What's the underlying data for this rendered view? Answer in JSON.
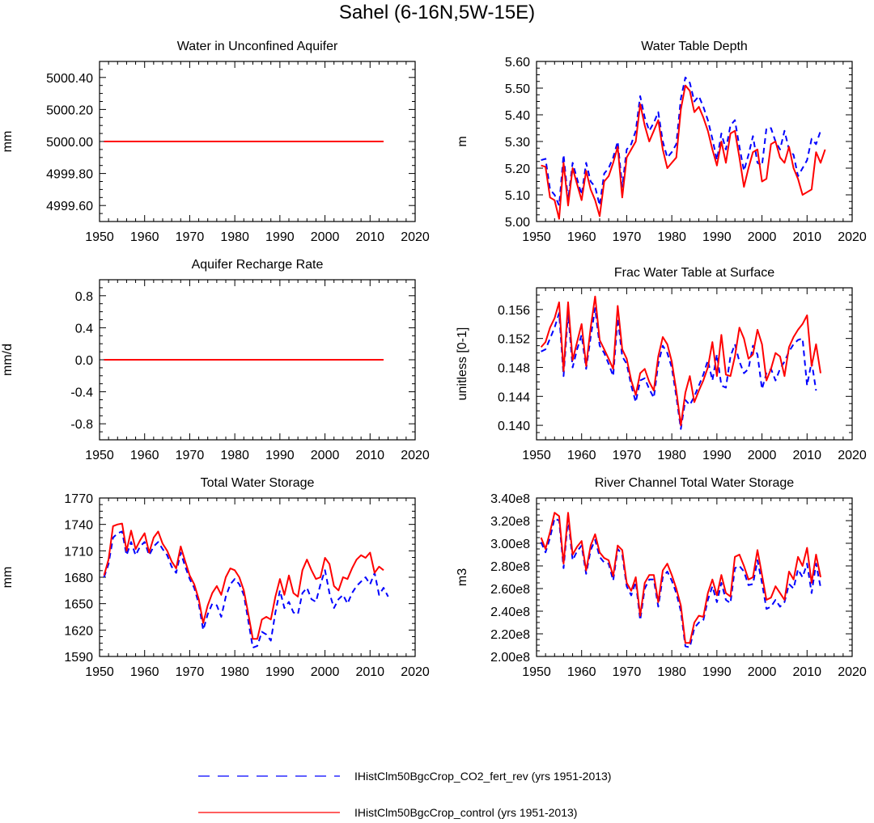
{
  "figure": {
    "title": "Sahel (6-16N,5W-15E)"
  },
  "legend": [
    {
      "label": "IHistClm50BgcCrop_CO2_fert_rev (yrs 1951-2013)",
      "color": "#0000ff",
      "style": "dashed"
    },
    {
      "label": "IHistClm50BgcCrop_control (yrs 1951-2013)",
      "color": "#ff0000",
      "style": "solid"
    }
  ],
  "colors": {
    "series_1": "#0000ff",
    "series_2": "#ff0000"
  },
  "chart_data": [
    {
      "type": "line",
      "title": "Water in Unconfined Aquifer",
      "ylabel": "mm",
      "xlim": [
        1950,
        2020
      ],
      "ylim": [
        4999.5,
        5000.5
      ],
      "xticks": [
        1950,
        1960,
        1970,
        1980,
        1990,
        2000,
        2010,
        2020
      ],
      "yticks": [
        4999.6,
        4999.8,
        5000.0,
        5000.2,
        5000.4
      ],
      "ytick_labels": [
        "4999.60",
        "4999.80",
        "5000.00",
        "5000.20",
        "5000.40"
      ],
      "x": [
        1951,
        2013
      ],
      "series": [
        {
          "values": [
            5000.0,
            5000.0
          ]
        },
        {
          "values": [
            5000.0,
            5000.0
          ]
        }
      ]
    },
    {
      "type": "line",
      "title": "Water Table Depth",
      "ylabel": "m",
      "xlim": [
        1950,
        2020
      ],
      "ylim": [
        5.0,
        5.6
      ],
      "xticks": [
        1950,
        1960,
        1970,
        1980,
        1990,
        2000,
        2010,
        2020
      ],
      "yticks": [
        5.0,
        5.1,
        5.2,
        5.3,
        5.4,
        5.5,
        5.6
      ],
      "ytick_labels": [
        "5.00",
        "5.10",
        "5.20",
        "5.30",
        "5.40",
        "5.50",
        "5.60"
      ],
      "x_start": 1951,
      "x_step": 1,
      "series": [
        {
          "values": [
            5.23,
            5.235,
            5.12,
            5.1,
            5.06,
            5.25,
            5.08,
            5.22,
            5.16,
            5.1,
            5.22,
            5.15,
            5.13,
            5.06,
            5.18,
            5.2,
            5.24,
            5.3,
            5.13,
            5.27,
            5.29,
            5.34,
            5.47,
            5.39,
            5.34,
            5.37,
            5.41,
            5.3,
            5.24,
            5.26,
            5.29,
            5.46,
            5.54,
            5.52,
            5.45,
            5.47,
            5.43,
            5.38,
            5.31,
            5.23,
            5.33,
            5.27,
            5.36,
            5.38,
            5.28,
            5.19,
            5.25,
            5.32,
            5.22,
            5.21,
            5.35,
            5.35,
            5.3,
            5.27,
            5.34,
            5.27,
            5.25,
            5.17,
            5.2,
            5.23,
            5.31,
            5.29,
            5.34
          ]
        },
        {
          "values": [
            5.21,
            5.205,
            5.09,
            5.08,
            5.01,
            5.22,
            5.06,
            5.2,
            5.14,
            5.08,
            5.19,
            5.12,
            5.08,
            5.02,
            5.15,
            5.17,
            5.22,
            5.28,
            5.09,
            5.24,
            5.27,
            5.3,
            5.44,
            5.36,
            5.3,
            5.34,
            5.38,
            5.27,
            5.2,
            5.22,
            5.24,
            5.42,
            5.51,
            5.49,
            5.41,
            5.43,
            5.39,
            5.34,
            5.27,
            5.21,
            5.3,
            5.22,
            5.33,
            5.34,
            5.24,
            5.13,
            5.2,
            5.26,
            5.27,
            5.15,
            5.16,
            5.29,
            5.3,
            5.24,
            5.22,
            5.28,
            5.2,
            5.16,
            5.1,
            5.11,
            5.12,
            5.26,
            5.22,
            5.27
          ]
        }
      ]
    },
    {
      "type": "line",
      "title": "Aquifer Recharge Rate",
      "ylabel": "mm/d",
      "xlim": [
        1950,
        2020
      ],
      "ylim": [
        -1.0,
        1.0
      ],
      "xticks": [
        1950,
        1960,
        1970,
        1980,
        1990,
        2000,
        2010,
        2020
      ],
      "yticks": [
        -0.8,
        -0.4,
        0.0,
        0.4,
        0.8
      ],
      "ytick_labels": [
        "-0.8",
        "-0.4",
        "0.0",
        "0.4",
        "0.8"
      ],
      "x": [
        1951,
        2013
      ],
      "series": [
        {
          "values": [
            0.0,
            0.0
          ]
        },
        {
          "values": [
            0.0,
            0.0
          ]
        }
      ]
    },
    {
      "type": "line",
      "title": "Frac Water Table at Surface",
      "ylabel": "unitless [0-1]",
      "xlim": [
        1950,
        2020
      ],
      "ylim": [
        0.138,
        0.159
      ],
      "xticks": [
        1950,
        1960,
        1970,
        1980,
        1990,
        2000,
        2010,
        2020
      ],
      "yticks": [
        0.14,
        0.144,
        0.148,
        0.152,
        0.156
      ],
      "ytick_labels": [
        "0.140",
        "0.144",
        "0.148",
        "0.152",
        "0.156"
      ],
      "x_start": 1951,
      "x_step": 1,
      "series": [
        {
          "values": [
            0.1502,
            0.1505,
            0.152,
            0.1535,
            0.1555,
            0.1468,
            0.1555,
            0.148,
            0.1505,
            0.1525,
            0.1478,
            0.1522,
            0.1562,
            0.151,
            0.15,
            0.1485,
            0.1468,
            0.1548,
            0.1495,
            0.1485,
            0.1455,
            0.1432,
            0.1462,
            0.1465,
            0.145,
            0.1438,
            0.1485,
            0.151,
            0.15,
            0.148,
            0.144,
            0.1395,
            0.1435,
            0.1428,
            0.144,
            0.1455,
            0.147,
            0.149,
            0.1462,
            0.1498,
            0.1455,
            0.1452,
            0.1495,
            0.1512,
            0.1488,
            0.1472,
            0.1478,
            0.151,
            0.1498,
            0.145,
            0.1472,
            0.1478,
            0.1462,
            0.1478,
            0.1488,
            0.1502,
            0.1512,
            0.1518,
            0.152,
            0.1455,
            0.1488,
            0.1448
          ]
        },
        {
          "values": [
            0.1508,
            0.1515,
            0.1535,
            0.1548,
            0.157,
            0.1475,
            0.157,
            0.149,
            0.1515,
            0.154,
            0.1482,
            0.1535,
            0.1578,
            0.1518,
            0.1505,
            0.1492,
            0.1478,
            0.1565,
            0.1505,
            0.1492,
            0.1462,
            0.1442,
            0.1472,
            0.1478,
            0.146,
            0.1448,
            0.1495,
            0.1522,
            0.1512,
            0.1488,
            0.1448,
            0.14,
            0.1445,
            0.1468,
            0.1432,
            0.1448,
            0.1462,
            0.148,
            0.1515,
            0.1468,
            0.1525,
            0.147,
            0.1468,
            0.1495,
            0.1535,
            0.152,
            0.1492,
            0.1498,
            0.1532,
            0.1512,
            0.1462,
            0.1478,
            0.15,
            0.1495,
            0.1468,
            0.1508,
            0.1522,
            0.1532,
            0.154,
            0.1552,
            0.1482,
            0.1512,
            0.1472
          ]
        }
      ]
    },
    {
      "type": "line",
      "title": "Total Water Storage",
      "ylabel": "mm",
      "xlim": [
        1950,
        2020
      ],
      "ylim": [
        1590,
        1770
      ],
      "xticks": [
        1950,
        1960,
        1970,
        1980,
        1990,
        2000,
        2010,
        2020
      ],
      "yticks": [
        1590,
        1620,
        1650,
        1680,
        1710,
        1740,
        1770
      ],
      "ytick_labels": [
        "1590",
        "1620",
        "1650",
        "1680",
        "1710",
        "1740",
        "1770"
      ],
      "x_start": 1951,
      "x_step": 1,
      "series": [
        {
          "values": [
            1680,
            1695,
            1725,
            1730,
            1732,
            1705,
            1720,
            1705,
            1715,
            1720,
            1705,
            1715,
            1720,
            1712,
            1705,
            1692,
            1685,
            1708,
            1692,
            1678,
            1668,
            1650,
            1620,
            1638,
            1650,
            1648,
            1635,
            1658,
            1672,
            1678,
            1672,
            1660,
            1630,
            1600,
            1602,
            1618,
            1615,
            1608,
            1640,
            1665,
            1645,
            1652,
            1640,
            1638,
            1662,
            1668,
            1655,
            1652,
            1672,
            1688,
            1662,
            1645,
            1655,
            1660,
            1650,
            1662,
            1670,
            1675,
            1680,
            1672,
            1685,
            1660,
            1668,
            1658
          ]
        },
        {
          "values": [
            1682,
            1700,
            1738,
            1740,
            1741,
            1710,
            1733,
            1712,
            1722,
            1730,
            1708,
            1725,
            1732,
            1718,
            1710,
            1698,
            1690,
            1715,
            1698,
            1682,
            1672,
            1655,
            1628,
            1648,
            1662,
            1670,
            1660,
            1680,
            1690,
            1688,
            1680,
            1665,
            1638,
            1610,
            1610,
            1632,
            1635,
            1632,
            1658,
            1678,
            1660,
            1682,
            1662,
            1658,
            1688,
            1700,
            1688,
            1678,
            1680,
            1702,
            1695,
            1670,
            1665,
            1680,
            1678,
            1690,
            1700,
            1705,
            1702,
            1708,
            1685,
            1692,
            1688
          ]
        }
      ]
    },
    {
      "type": "line",
      "title": "River Channel Total Water Storage",
      "ylabel": "m3",
      "xlim": [
        1950,
        2020
      ],
      "ylim": [
        200000000,
        340000000
      ],
      "xticks": [
        1950,
        1960,
        1970,
        1980,
        1990,
        2000,
        2010,
        2020
      ],
      "yticks": [
        200000000,
        220000000,
        240000000,
        260000000,
        280000000,
        300000000,
        320000000,
        340000000
      ],
      "ytick_labels": [
        "2.00e8",
        "2.20e8",
        "2.40e8",
        "2.60e8",
        "2.80e8",
        "3.00e8",
        "3.20e8",
        "3.40e8"
      ],
      "x_start": 1951,
      "x_step": 1,
      "series": [
        {
          "values": [
            301000000,
            292000000,
            305000000,
            322000000,
            320000000,
            278000000,
            322000000,
            285000000,
            293000000,
            298000000,
            273000000,
            294000000,
            303000000,
            288000000,
            283000000,
            282000000,
            267000000,
            295000000,
            290000000,
            262000000,
            254000000,
            266000000,
            232000000,
            260000000,
            268000000,
            268000000,
            244000000,
            270000000,
            275000000,
            267000000,
            256000000,
            240000000,
            209000000,
            208000000,
            225000000,
            230000000,
            232000000,
            250000000,
            262000000,
            248000000,
            265000000,
            250000000,
            247000000,
            278000000,
            280000000,
            275000000,
            263000000,
            264000000,
            285000000,
            265000000,
            242000000,
            244000000,
            250000000,
            244000000,
            248000000,
            264000000,
            260000000,
            277000000,
            270000000,
            282000000,
            256000000,
            282000000,
            261000000
          ]
        },
        {
          "values": [
            305000000,
            295000000,
            310000000,
            327000000,
            324000000,
            282000000,
            327000000,
            290000000,
            297000000,
            302000000,
            276000000,
            298000000,
            308000000,
            292000000,
            287000000,
            285000000,
            271000000,
            298000000,
            294000000,
            265000000,
            258000000,
            270000000,
            236000000,
            265000000,
            272000000,
            272000000,
            248000000,
            276000000,
            282000000,
            272000000,
            260000000,
            245000000,
            212000000,
            212000000,
            230000000,
            236000000,
            235000000,
            256000000,
            268000000,
            254000000,
            272000000,
            256000000,
            253000000,
            288000000,
            290000000,
            280000000,
            268000000,
            270000000,
            294000000,
            272000000,
            250000000,
            252000000,
            262000000,
            256000000,
            250000000,
            275000000,
            268000000,
            288000000,
            280000000,
            296000000,
            265000000,
            290000000,
            270000000
          ]
        }
      ]
    }
  ]
}
